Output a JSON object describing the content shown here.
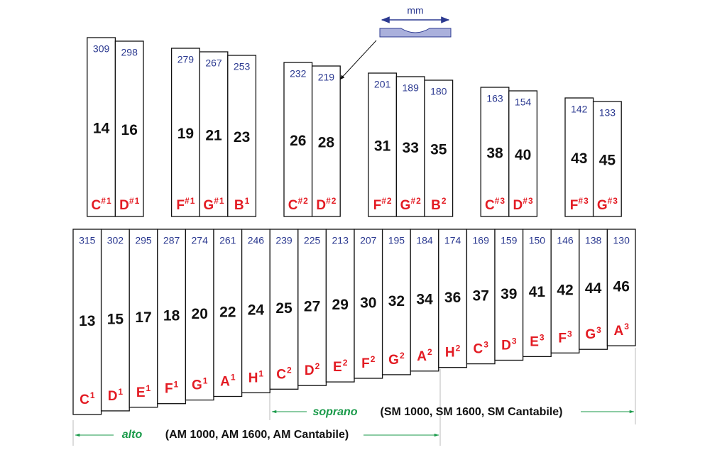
{
  "dimension_label": "mm",
  "top_bars": [
    {
      "mm": 309,
      "number": 14,
      "note": "C",
      "accidental": "#",
      "octave": 1
    },
    {
      "mm": 298,
      "number": 16,
      "note": "D",
      "accidental": "#",
      "octave": 1
    },
    {
      "mm": 279,
      "number": 19,
      "note": "F",
      "accidental": "#",
      "octave": 1
    },
    {
      "mm": 267,
      "number": 21,
      "note": "G",
      "accidental": "#",
      "octave": 1
    },
    {
      "mm": 253,
      "number": 23,
      "note": "B",
      "octave": 1
    },
    {
      "mm": 232,
      "number": 26,
      "note": "C",
      "accidental": "#",
      "octave": 2
    },
    {
      "mm": 219,
      "number": 28,
      "note": "D",
      "accidental": "#",
      "octave": 2
    },
    {
      "mm": 201,
      "number": 31,
      "note": "F",
      "accidental": "#",
      "octave": 2
    },
    {
      "mm": 189,
      "number": 33,
      "note": "G",
      "accidental": "#",
      "octave": 2
    },
    {
      "mm": 180,
      "number": 35,
      "note": "B",
      "octave": 2
    },
    {
      "mm": 163,
      "number": 38,
      "note": "C",
      "accidental": "#",
      "octave": 3
    },
    {
      "mm": 154,
      "number": 40,
      "note": "D",
      "accidental": "#",
      "octave": 3
    },
    {
      "mm": 142,
      "number": 43,
      "note": "F",
      "accidental": "#",
      "octave": 3
    },
    {
      "mm": 133,
      "number": 45,
      "note": "G",
      "accidental": "#",
      "octave": 3
    }
  ],
  "bottom_bars": [
    {
      "mm": 315,
      "number": 13,
      "note": "C",
      "octave": 1
    },
    {
      "mm": 302,
      "number": 15,
      "note": "D",
      "octave": 1
    },
    {
      "mm": 295,
      "number": 17,
      "note": "E",
      "octave": 1
    },
    {
      "mm": 287,
      "number": 18,
      "note": "F",
      "octave": 1
    },
    {
      "mm": 274,
      "number": 20,
      "note": "G",
      "octave": 1
    },
    {
      "mm": 261,
      "number": 22,
      "note": "A",
      "octave": 1
    },
    {
      "mm": 246,
      "number": 24,
      "note": "H",
      "octave": 1
    },
    {
      "mm": 239,
      "number": 25,
      "note": "C",
      "octave": 2
    },
    {
      "mm": 225,
      "number": 27,
      "note": "D",
      "octave": 2
    },
    {
      "mm": 213,
      "number": 29,
      "note": "E",
      "octave": 2
    },
    {
      "mm": 207,
      "number": 30,
      "note": "F",
      "octave": 2
    },
    {
      "mm": 195,
      "number": 32,
      "note": "G",
      "octave": 2
    },
    {
      "mm": 184,
      "number": 34,
      "note": "A",
      "octave": 2
    },
    {
      "mm": 174,
      "number": 36,
      "note": "H",
      "octave": 2
    },
    {
      "mm": 169,
      "number": 37,
      "note": "C",
      "octave": 3
    },
    {
      "mm": 159,
      "number": 39,
      "note": "D",
      "octave": 3
    },
    {
      "mm": 150,
      "number": 41,
      "note": "E",
      "octave": 3
    },
    {
      "mm": 146,
      "number": 42,
      "note": "F",
      "octave": 3
    },
    {
      "mm": 138,
      "number": 44,
      "note": "G",
      "octave": 3
    },
    {
      "mm": 130,
      "number": 46,
      "note": "A",
      "octave": 3
    }
  ],
  "ranges": [
    {
      "name": "soprano",
      "models": "(SM 1000, SM 1600, SM Cantabile)"
    },
    {
      "name": "alto",
      "models": "(AM 1000, AM 1600, AM Cantabile)"
    }
  ]
}
